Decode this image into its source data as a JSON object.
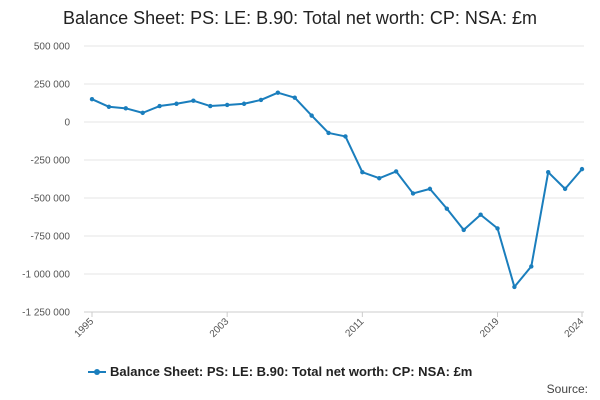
{
  "colors": {
    "series": "#1a7ebd",
    "grid": "#e6e6e6",
    "axis": "#cccccc"
  },
  "source_label": "Source:",
  "chart_data": {
    "type": "line",
    "title": "Balance Sheet: PS: LE: B.90: Total net worth: CP: NSA: £m",
    "xlabel": "",
    "ylabel": "",
    "ylim": [
      -1250000,
      500000
    ],
    "yticks": [
      500000,
      250000,
      0,
      -250000,
      -500000,
      -750000,
      -1000000,
      -1250000
    ],
    "ytick_labels": [
      "500 000",
      "250 000",
      "0",
      "-250 000",
      "-500 000",
      "-750 000",
      "-1 000 000",
      "-1 250 000"
    ],
    "xlim": [
      1995,
      2024
    ],
    "xticks": [
      1995,
      2003,
      2011,
      2019,
      2024
    ],
    "xtick_labels": [
      "1995",
      "2003",
      "2011",
      "2019",
      "2024"
    ],
    "grid": true,
    "legend_position": "bottom",
    "series": [
      {
        "name": "Balance Sheet: PS: LE: B.90: Total net worth: CP: NSA: £m",
        "x": [
          1995,
          1996,
          1997,
          1998,
          1999,
          2000,
          2001,
          2002,
          2003,
          2004,
          2005,
          2006,
          2007,
          2008,
          2009,
          2010,
          2011,
          2012,
          2013,
          2014,
          2015,
          2016,
          2017,
          2018,
          2019,
          2020,
          2021,
          2022,
          2023,
          2024
        ],
        "values": [
          150000,
          100000,
          90000,
          60000,
          105000,
          120000,
          140000,
          105000,
          112000,
          120000,
          145000,
          193000,
          160000,
          42000,
          -72000,
          -95000,
          -330000,
          -370000,
          -325000,
          -470000,
          -440000,
          -570000,
          -710000,
          -610000,
          -700000,
          -1085000,
          -950000,
          -330000,
          -440000,
          -310000
        ]
      }
    ]
  }
}
